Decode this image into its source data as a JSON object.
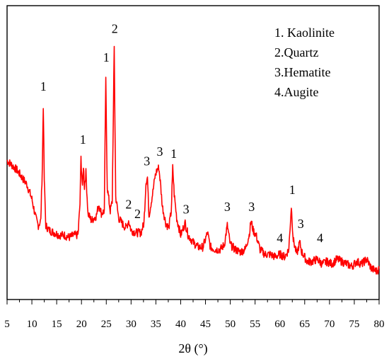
{
  "chart_data": {
    "type": "line",
    "title": "",
    "xlabel": "2θ (°)",
    "ylabel": "",
    "xlim": [
      5,
      80
    ],
    "ylim": [
      0,
      1
    ],
    "grid": false,
    "y_ticks_labeled": false,
    "x_ticks": [
      "5",
      "10",
      "15",
      "20",
      "25",
      "30",
      "35",
      "40",
      "45",
      "50",
      "55",
      "60",
      "65",
      "70",
      "75",
      "80"
    ],
    "line_color": "#ff0000",
    "legend": {
      "placement": "top-right",
      "entries": [
        "1. Kaolinite",
        "2.Quartz",
        "3.Hematite",
        "4.Augite"
      ]
    },
    "series": [
      {
        "values": [
          [
            5.0,
            0.51
          ],
          [
            6.0,
            0.49
          ],
          [
            7.0,
            0.47
          ],
          [
            8.0,
            0.44
          ],
          [
            9.0,
            0.41
          ],
          [
            10.0,
            0.35
          ],
          [
            10.8,
            0.27
          ],
          [
            11.3,
            0.24
          ],
          [
            11.8,
            0.26
          ],
          [
            12.1,
            0.48
          ],
          [
            12.3,
            0.74
          ],
          [
            12.5,
            0.43
          ],
          [
            12.8,
            0.24
          ],
          [
            13.5,
            0.22
          ],
          [
            14.5,
            0.21
          ],
          [
            15.5,
            0.2
          ],
          [
            16.5,
            0.2
          ],
          [
            17.5,
            0.19
          ],
          [
            18.5,
            0.2
          ],
          [
            19.3,
            0.2
          ],
          [
            19.7,
            0.33
          ],
          [
            19.9,
            0.52
          ],
          [
            20.2,
            0.39
          ],
          [
            20.4,
            0.49
          ],
          [
            20.6,
            0.4
          ],
          [
            20.9,
            0.46
          ],
          [
            21.3,
            0.29
          ],
          [
            22.0,
            0.26
          ],
          [
            23.0,
            0.28
          ],
          [
            23.5,
            0.33
          ],
          [
            24.0,
            0.29
          ],
          [
            24.6,
            0.3
          ],
          [
            24.9,
            0.84
          ],
          [
            25.2,
            0.4
          ],
          [
            25.8,
            0.3
          ],
          [
            26.2,
            0.34
          ],
          [
            26.6,
            0.98
          ],
          [
            26.9,
            0.36
          ],
          [
            27.5,
            0.27
          ],
          [
            28.5,
            0.24
          ],
          [
            29.0,
            0.23
          ],
          [
            29.5,
            0.26
          ],
          [
            30.0,
            0.22
          ],
          [
            31.0,
            0.21
          ],
          [
            32.0,
            0.21
          ],
          [
            32.6,
            0.25
          ],
          [
            33.0,
            0.42
          ],
          [
            33.3,
            0.44
          ],
          [
            33.6,
            0.28
          ],
          [
            34.4,
            0.38
          ],
          [
            34.8,
            0.44
          ],
          [
            35.2,
            0.47
          ],
          [
            35.6,
            0.48
          ],
          [
            35.9,
            0.42
          ],
          [
            36.3,
            0.32
          ],
          [
            37.0,
            0.25
          ],
          [
            37.6,
            0.23
          ],
          [
            38.1,
            0.3
          ],
          [
            38.4,
            0.48
          ],
          [
            38.7,
            0.37
          ],
          [
            39.2,
            0.27
          ],
          [
            40.0,
            0.2
          ],
          [
            40.9,
            0.25
          ],
          [
            41.5,
            0.2
          ],
          [
            42.5,
            0.17
          ],
          [
            43.5,
            0.15
          ],
          [
            44.5,
            0.15
          ],
          [
            45.4,
            0.21
          ],
          [
            46.0,
            0.15
          ],
          [
            47.0,
            0.14
          ],
          [
            48.0,
            0.14
          ],
          [
            48.8,
            0.16
          ],
          [
            49.4,
            0.24
          ],
          [
            50.0,
            0.16
          ],
          [
            51.0,
            0.14
          ],
          [
            52.0,
            0.13
          ],
          [
            53.0,
            0.14
          ],
          [
            53.8,
            0.2
          ],
          [
            54.2,
            0.26
          ],
          [
            54.6,
            0.22
          ],
          [
            55.2,
            0.2
          ],
          [
            56.0,
            0.14
          ],
          [
            57.0,
            0.12
          ],
          [
            58.0,
            0.12
          ],
          [
            59.0,
            0.11
          ],
          [
            60.0,
            0.12
          ],
          [
            61.0,
            0.11
          ],
          [
            61.8,
            0.14
          ],
          [
            62.3,
            0.32
          ],
          [
            62.7,
            0.18
          ],
          [
            63.4,
            0.12
          ],
          [
            64.0,
            0.17
          ],
          [
            64.4,
            0.13
          ],
          [
            65.5,
            0.09
          ],
          [
            66.5,
            0.09
          ],
          [
            67.5,
            0.1
          ],
          [
            68.5,
            0.08
          ],
          [
            69.5,
            0.09
          ],
          [
            70.5,
            0.08
          ],
          [
            71.5,
            0.1
          ],
          [
            72.5,
            0.09
          ],
          [
            73.5,
            0.08
          ],
          [
            74.5,
            0.07
          ],
          [
            75.5,
            0.09
          ],
          [
            76.5,
            0.08
          ],
          [
            77.5,
            0.1
          ],
          [
            78.5,
            0.06
          ],
          [
            79.5,
            0.05
          ],
          [
            80.0,
            0.06
          ]
        ]
      }
    ],
    "peak_annotations": [
      {
        "text": "1",
        "x": 12.3,
        "y": 0.8
      },
      {
        "text": "1",
        "x": 20.3,
        "y": 0.58
      },
      {
        "text": "1",
        "x": 25.0,
        "y": 0.92
      },
      {
        "text": "2",
        "x": 26.7,
        "y": 1.04
      },
      {
        "text": "2",
        "x": 29.5,
        "y": 0.31
      },
      {
        "text": "2",
        "x": 31.3,
        "y": 0.27
      },
      {
        "text": "3",
        "x": 33.2,
        "y": 0.49
      },
      {
        "text": "3",
        "x": 35.8,
        "y": 0.53
      },
      {
        "text": "1",
        "x": 38.6,
        "y": 0.52
      },
      {
        "text": "3",
        "x": 41.1,
        "y": 0.29
      },
      {
        "text": "3",
        "x": 49.4,
        "y": 0.3
      },
      {
        "text": "3",
        "x": 54.3,
        "y": 0.3
      },
      {
        "text": "4",
        "x": 60.0,
        "y": 0.17
      },
      {
        "text": "1",
        "x": 62.5,
        "y": 0.37
      },
      {
        "text": "3",
        "x": 64.2,
        "y": 0.23
      },
      {
        "text": "4",
        "x": 68.1,
        "y": 0.17
      }
    ]
  }
}
